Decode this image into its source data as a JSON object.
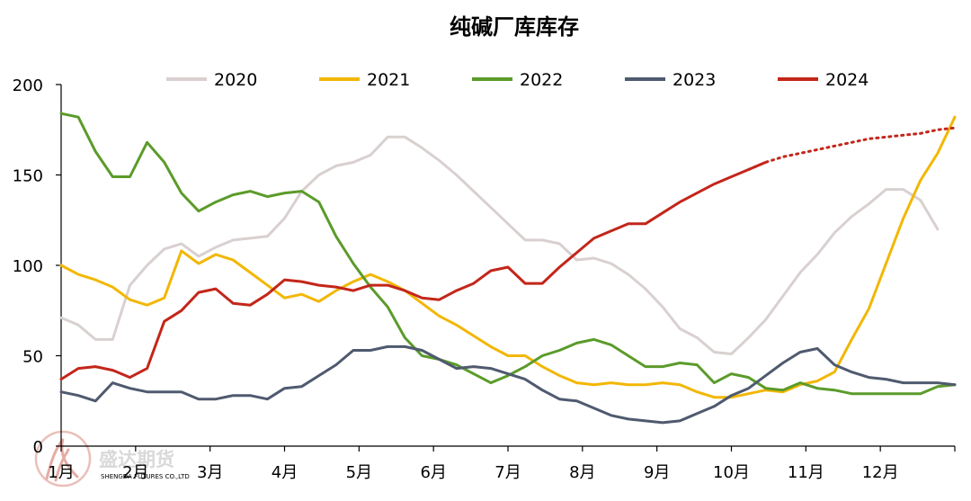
{
  "chart_data": {
    "type": "line",
    "title": "纯碱厂库库存",
    "xlabel": "",
    "ylabel": "",
    "ylim": [
      0,
      200
    ],
    "yticks": [
      "0",
      "50",
      "100",
      "150",
      "200"
    ],
    "x_tick_labels": [
      "1月",
      "2月",
      "3月",
      "4月",
      "5月",
      "6月",
      "7月",
      "8月",
      "9月",
      "10月",
      "11月",
      "12月"
    ],
    "x_unit": "week",
    "x_range": [
      1,
      53
    ],
    "legend_position": "top",
    "grid": false,
    "series": [
      {
        "name": "2020",
        "color": "#d9d0d0",
        "x": [
          1,
          2,
          3,
          4,
          5,
          6,
          7,
          8,
          9,
          10,
          11,
          12,
          13,
          14,
          15,
          16,
          17,
          18,
          19,
          20,
          21,
          22,
          23,
          24,
          25,
          26,
          27,
          28,
          29,
          30,
          31,
          32,
          33,
          34,
          35,
          36,
          37,
          38,
          39,
          40,
          41,
          42,
          43,
          44,
          45,
          46,
          47,
          48,
          49,
          50,
          51,
          52,
          53
        ],
        "values": [
          71,
          67,
          59,
          59,
          89,
          100,
          109,
          112,
          105,
          110,
          114,
          115,
          116,
          126,
          141,
          150,
          155,
          157,
          161,
          171,
          171,
          165,
          158,
          150,
          141,
          132,
          123,
          114,
          114,
          112,
          103,
          104,
          101,
          95,
          87,
          77,
          65,
          60,
          52,
          51,
          60,
          70,
          83,
          96,
          106,
          118,
          127,
          134,
          142,
          142,
          136,
          120,
          null
        ]
      },
      {
        "name": "2021",
        "color": "#f2b705",
        "x": [
          1,
          2,
          3,
          4,
          5,
          6,
          7,
          8,
          9,
          10,
          11,
          12,
          13,
          14,
          15,
          16,
          17,
          18,
          19,
          20,
          21,
          22,
          23,
          24,
          25,
          26,
          27,
          28,
          29,
          30,
          31,
          32,
          33,
          34,
          35,
          36,
          37,
          38,
          39,
          40,
          41,
          42,
          43,
          44,
          45,
          46,
          47,
          48,
          49,
          50,
          51,
          52,
          53
        ],
        "values": [
          100,
          95,
          92,
          88,
          81,
          78,
          82,
          108,
          101,
          106,
          103,
          96,
          89,
          82,
          84,
          80,
          86,
          91,
          95,
          91,
          86,
          79,
          72,
          67,
          61,
          55,
          50,
          50,
          44,
          39,
          35,
          34,
          35,
          34,
          34,
          35,
          34,
          30,
          27,
          27,
          29,
          31,
          30,
          34,
          36,
          41,
          59,
          76,
          101,
          126,
          147,
          162,
          182
        ]
      },
      {
        "name": "2022",
        "color": "#5b9b2a",
        "x": [
          1,
          2,
          3,
          4,
          5,
          6,
          7,
          8,
          9,
          10,
          11,
          12,
          13,
          14,
          15,
          16,
          17,
          18,
          19,
          20,
          21,
          22,
          23,
          24,
          25,
          26,
          27,
          28,
          29,
          30,
          31,
          32,
          33,
          34,
          35,
          36,
          37,
          38,
          39,
          40,
          41,
          42,
          43,
          44,
          45,
          46,
          47,
          48,
          49,
          50,
          51,
          52,
          53
        ],
        "values": [
          184,
          182,
          163,
          149,
          149,
          168,
          157,
          140,
          130,
          135,
          139,
          141,
          138,
          140,
          141,
          135,
          116,
          101,
          88,
          77,
          60,
          50,
          48,
          45,
          40,
          35,
          39,
          44,
          50,
          53,
          57,
          59,
          56,
          50,
          44,
          44,
          46,
          45,
          35,
          40,
          38,
          32,
          31,
          35,
          32,
          31,
          29,
          29,
          29,
          29,
          29,
          33,
          34
        ]
      },
      {
        "name": "2023",
        "color": "#4f5a6f",
        "x": [
          1,
          2,
          3,
          4,
          5,
          6,
          7,
          8,
          9,
          10,
          11,
          12,
          13,
          14,
          15,
          16,
          17,
          18,
          19,
          20,
          21,
          22,
          23,
          24,
          25,
          26,
          27,
          28,
          29,
          30,
          31,
          32,
          33,
          34,
          35,
          36,
          37,
          38,
          39,
          40,
          41,
          42,
          43,
          44,
          45,
          46,
          47,
          48,
          49,
          50,
          51,
          52,
          53
        ],
        "values": [
          30,
          28,
          25,
          35,
          32,
          30,
          30,
          30,
          26,
          26,
          28,
          28,
          26,
          32,
          33,
          39,
          45,
          53,
          53,
          55,
          55,
          53,
          48,
          43,
          44,
          43,
          40,
          37,
          31,
          26,
          25,
          21,
          17,
          15,
          14,
          13,
          14,
          18,
          22,
          28,
          32,
          39,
          46,
          52,
          54,
          45,
          41,
          38,
          37,
          35,
          35,
          35,
          34
        ]
      },
      {
        "name": "2024",
        "color": "#c3261a",
        "x": [
          1,
          2,
          3,
          4,
          5,
          6,
          7,
          8,
          9,
          10,
          11,
          12,
          13,
          14,
          15,
          16,
          17,
          18,
          19,
          20,
          21,
          22,
          23,
          24,
          25,
          26,
          27,
          28,
          29,
          30,
          31,
          32,
          33,
          34,
          35,
          36,
          37,
          38,
          39,
          40,
          41,
          42,
          43,
          44,
          45,
          46,
          47,
          48,
          49,
          50,
          51,
          52,
          53
        ],
        "values": [
          37,
          43,
          44,
          42,
          38,
          43,
          69,
          75,
          85,
          87,
          79,
          78,
          84,
          92,
          91,
          89,
          88,
          86,
          89,
          89,
          86,
          82,
          81,
          86,
          90,
          97,
          99,
          90,
          90,
          99,
          107,
          115,
          119,
          123,
          123,
          129,
          135,
          140,
          145,
          149,
          153,
          157,
          null,
          null,
          null,
          null,
          null,
          null,
          null,
          null,
          null,
          null,
          null
        ],
        "projection": {
          "x": [
            41,
            42,
            43,
            44,
            45,
            46,
            47,
            48,
            49,
            50,
            51,
            52,
            53
          ],
          "values": [
            153,
            157,
            160,
            162,
            164,
            166,
            168,
            170,
            171,
            172,
            173,
            175,
            176
          ],
          "style": "dotted"
        }
      }
    ]
  },
  "watermark": {
    "text": "盛达期货",
    "subtext": "SHENGDA FUTURES CO.,LTD",
    "color": "#c9c9c9"
  }
}
